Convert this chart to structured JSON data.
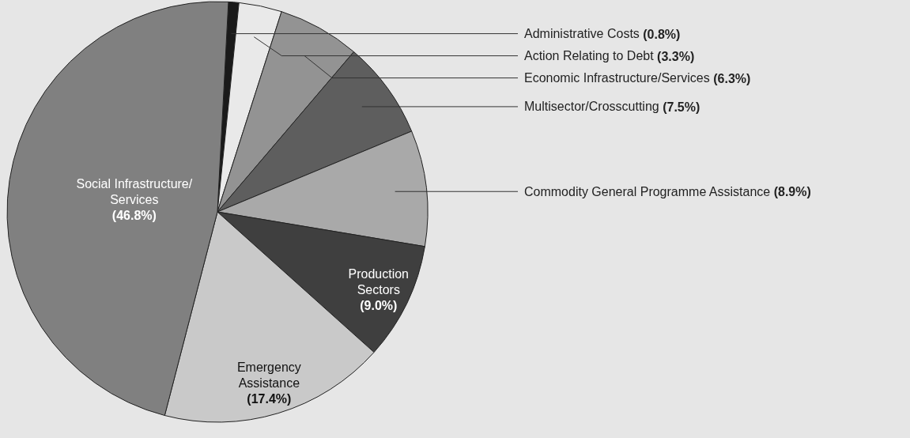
{
  "chart_data": {
    "type": "pie",
    "categories": [
      "Administrative Costs",
      "Action Relating to Debt",
      "Economic Infrastructure/Services",
      "Multisector/Crosscutting",
      "Commodity General Programme Assistance",
      "Production\nSectors",
      "Emergency\nAssistance",
      "Social Infrastructure/\nServices"
    ],
    "values": [
      0.8,
      3.3,
      6.3,
      7.5,
      8.9,
      9.0,
      17.4,
      46.8
    ],
    "value_labels": [
      "(0.8%)",
      "(3.3%)",
      "(6.3%)",
      "(7.5%)",
      "(8.9%)",
      "(9.0%)",
      "(17.4%)",
      "(46.8%)"
    ],
    "colors": [
      "#1a1a1a",
      "#e9e9e9",
      "#939393",
      "#5e5e5e",
      "#a9a9a9",
      "#3f3f3f",
      "#c9c9c9",
      "#808080"
    ],
    "legend": false
  }
}
